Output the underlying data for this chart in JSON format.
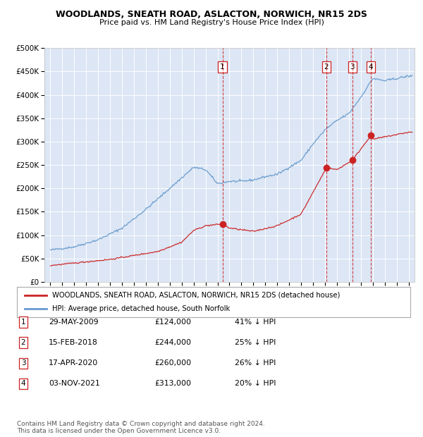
{
  "title": "WOODLANDS, SNEATH ROAD, ASLACTON, NORWICH, NR15 2DS",
  "subtitle": "Price paid vs. HM Land Registry's House Price Index (HPI)",
  "ylabel_ticks": [
    "£0",
    "£50K",
    "£100K",
    "£150K",
    "£200K",
    "£250K",
    "£300K",
    "£350K",
    "£400K",
    "£450K",
    "£500K"
  ],
  "ytick_values": [
    0,
    50000,
    100000,
    150000,
    200000,
    250000,
    300000,
    350000,
    400000,
    450000,
    500000
  ],
  "ylim": [
    0,
    500000
  ],
  "xlim_start": 1994.5,
  "xlim_end": 2025.5,
  "plot_bg_color": "#dce6f5",
  "hpi_color": "#6699cc",
  "price_color": "#cc2222",
  "transactions": [
    {
      "num": 1,
      "date": "29-MAY-2009",
      "x": 2009.41,
      "price": 124000
    },
    {
      "num": 2,
      "date": "15-FEB-2018",
      "x": 2018.12,
      "price": 244000
    },
    {
      "num": 3,
      "date": "17-APR-2020",
      "x": 2020.29,
      "price": 260000
    },
    {
      "num": 4,
      "date": "03-NOV-2021",
      "x": 2021.84,
      "price": 313000
    }
  ],
  "legend_line1": "WOODLANDS, SNEATH ROAD, ASLACTON, NORWICH, NR15 2DS (detached house)",
  "legend_line2": "HPI: Average price, detached house, South Norfolk",
  "footer1": "Contains HM Land Registry data © Crown copyright and database right 2024.",
  "footer2": "This data is licensed under the Open Government Licence v3.0.",
  "table_rows": [
    {
      "num": 1,
      "date": "29-MAY-2009",
      "price": "£124,000",
      "pct": "41% ↓ HPI"
    },
    {
      "num": 2,
      "date": "15-FEB-2018",
      "price": "£244,000",
      "pct": "25% ↓ HPI"
    },
    {
      "num": 3,
      "date": "17-APR-2020",
      "price": "£260,000",
      "pct": "26% ↓ HPI"
    },
    {
      "num": 4,
      "date": "03-NOV-2021",
      "price": "£313,000",
      "pct": "20% ↓ HPI"
    }
  ]
}
